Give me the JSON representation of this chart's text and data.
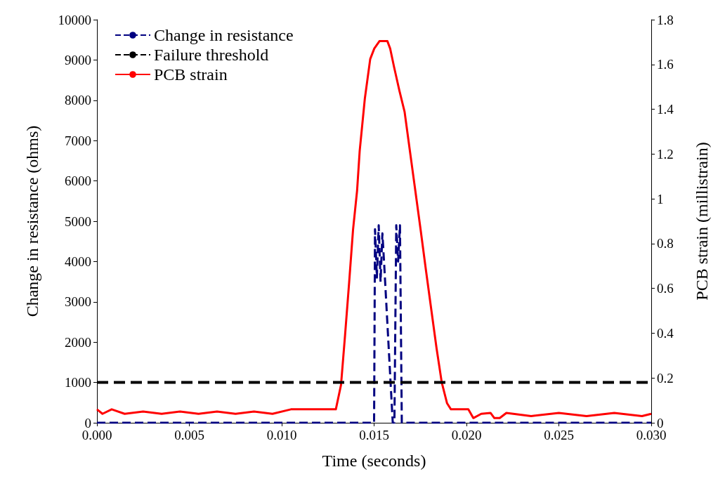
{
  "chart_data": {
    "type": "line",
    "xlabel": "Time (seconds)",
    "ylabel": "Change in resistance (ohms)",
    "y2label": "PCB strain (millistrain)",
    "xlim": [
      0,
      0.03
    ],
    "xticks": [
      {
        "value": 0,
        "label": "0.000"
      },
      {
        "value": 0.005,
        "label": "0.005"
      },
      {
        "value": 0.01,
        "label": "0.010"
      },
      {
        "value": 0.015,
        "label": "0.015"
      },
      {
        "value": 0.02,
        "label": "0.020"
      },
      {
        "value": 0.025,
        "label": "0.025"
      },
      {
        "value": 0.03,
        "label": "0.030"
      }
    ],
    "ylim": [
      0,
      10000
    ],
    "yticks": [
      0,
      1000,
      2000,
      3000,
      4000,
      5000,
      6000,
      7000,
      8000,
      9000,
      10000
    ],
    "y2lim": [
      0,
      1.8
    ],
    "y2ticks": [
      0,
      0.2,
      0.4,
      0.6,
      0.8,
      1,
      1.2,
      1.4,
      1.6,
      1.8
    ],
    "grid": false,
    "legend": "top left",
    "marker": "none",
    "ref_lines": [
      {
        "axis": "y",
        "value": 1000,
        "label": "Failure threshold",
        "color": "#000000",
        "line_style": "dashed"
      }
    ],
    "series": [
      {
        "name": "Change in resistance",
        "color": "#000080",
        "line_style": "dashed",
        "x": [
          0,
          0.015,
          0.01505,
          0.01515,
          0.01525,
          0.01535,
          0.01545,
          0.01555,
          0.01601,
          0.0161,
          0.0162,
          0.0163,
          0.0164,
          0.0165,
          0.03
        ],
        "values": [
          0,
          0,
          4800,
          3600,
          4900,
          3500,
          4700,
          3900,
          0,
          0,
          4900,
          4000,
          4900,
          0,
          0
        ]
      },
      {
        "name": "PCB strain",
        "color": "#ff0000",
        "line_style": "solid",
        "axis": "y2",
        "x": [
          0,
          0.0003,
          0.0008,
          0.0015,
          0.0025,
          0.0035,
          0.0045,
          0.0055,
          0.0065,
          0.0075,
          0.0085,
          0.0095,
          0.0105,
          0.0115,
          0.0125,
          0.01293,
          0.01321,
          0.01343,
          0.01365,
          0.01386,
          0.01408,
          0.01422,
          0.0145,
          0.01479,
          0.01501,
          0.01529,
          0.01572,
          0.01587,
          0.01608,
          0.01637,
          0.01665,
          0.01694,
          0.01723,
          0.01752,
          0.0178,
          0.01809,
          0.01838,
          0.01866,
          0.01895,
          0.01916,
          0.0201,
          0.02037,
          0.0208,
          0.0213,
          0.02151,
          0.0218,
          0.02216,
          0.0235,
          0.025,
          0.0265,
          0.028,
          0.0295,
          0.03
        ],
        "values": [
          0.06,
          0.04,
          0.06,
          0.04,
          0.05,
          0.04,
          0.05,
          0.04,
          0.05,
          0.04,
          0.05,
          0.04,
          0.06,
          0.06,
          0.06,
          0.06,
          0.169,
          0.392,
          0.627,
          0.861,
          1.037,
          1.213,
          1.448,
          1.624,
          1.671,
          1.704,
          1.704,
          1.671,
          1.589,
          1.483,
          1.389,
          1.213,
          1.037,
          0.861,
          0.685,
          0.509,
          0.333,
          0.181,
          0.087,
          0.06,
          0.06,
          0.021,
          0.04,
          0.044,
          0.021,
          0.021,
          0.044,
          0.03,
          0.044,
          0.03,
          0.044,
          0.03,
          0.04
        ]
      }
    ]
  }
}
